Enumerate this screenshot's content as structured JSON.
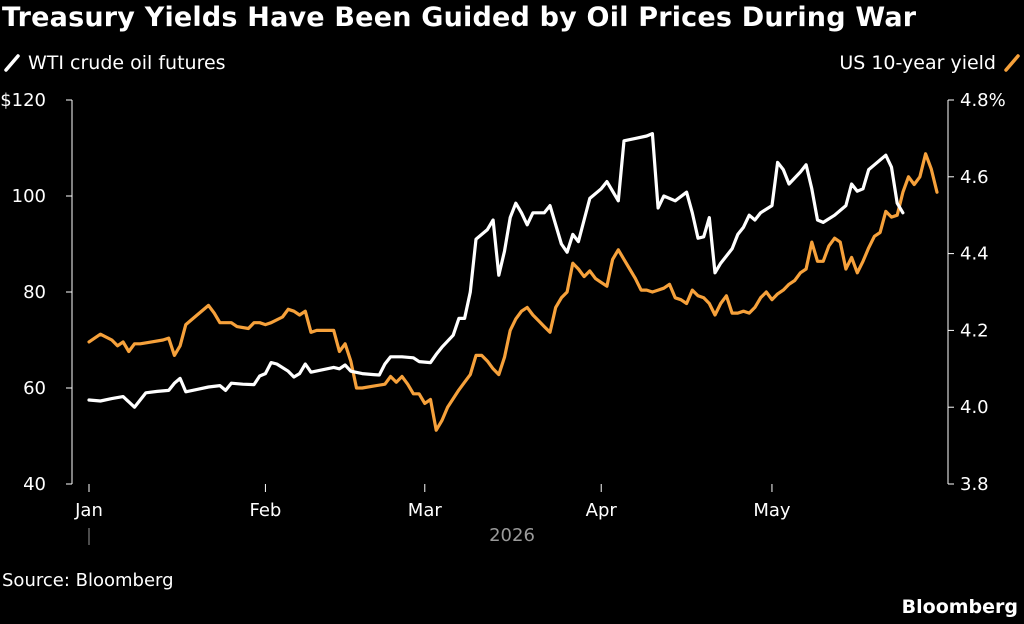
{
  "title": "Treasury Yields Have Been Guided by Oil Prices During War",
  "source": "Source: Bloomberg",
  "brand": "Bloomberg",
  "chart_data": {
    "type": "line",
    "title": "Treasury Yields Have Been Guided by Oil Prices During War",
    "x_tick_labels": [
      "Jan",
      "Feb",
      "Mar",
      "Apr",
      "May"
    ],
    "x_tick_positions": [
      0,
      31,
      59,
      90,
      120
    ],
    "x_year_label": "2026",
    "left_axis": {
      "ticks": [
        40,
        60,
        80,
        100,
        120
      ],
      "tick_labels": [
        "40",
        "60",
        "80",
        "100",
        "$120"
      ],
      "range": [
        40,
        120
      ]
    },
    "right_axis": {
      "ticks": [
        3.8,
        4.0,
        4.2,
        4.4,
        4.6,
        4.8
      ],
      "tick_labels": [
        "3.8",
        "4.0",
        "4.2",
        "4.4",
        "4.6",
        "4.8%"
      ],
      "range": [
        3.8,
        4.8
      ]
    },
    "grid": false,
    "series": [
      {
        "name": "WTI crude oil futures",
        "axis": "left",
        "color": "#ffffff",
        "points": [
          [
            0,
            57.5
          ],
          [
            2,
            57.3
          ],
          [
            4,
            57.8
          ],
          [
            6,
            58.2
          ],
          [
            8,
            56.0
          ],
          [
            10,
            59.0
          ],
          [
            12,
            59.3
          ],
          [
            14,
            59.5
          ],
          [
            15,
            61.0
          ],
          [
            16,
            62.0
          ],
          [
            17,
            59.2
          ],
          [
            19,
            59.7
          ],
          [
            21,
            60.2
          ],
          [
            23,
            60.5
          ],
          [
            24,
            59.5
          ],
          [
            25,
            61.0
          ],
          [
            27,
            60.8
          ],
          [
            29,
            60.7
          ],
          [
            30,
            62.5
          ],
          [
            31,
            63.0
          ],
          [
            32,
            65.3
          ],
          [
            33,
            65.0
          ],
          [
            35,
            63.5
          ],
          [
            36,
            62.3
          ],
          [
            37,
            63.0
          ],
          [
            38,
            65.0
          ],
          [
            39,
            63.3
          ],
          [
            41,
            63.8
          ],
          [
            43,
            64.3
          ],
          [
            44,
            64.0
          ],
          [
            45,
            64.8
          ],
          [
            46,
            63.5
          ],
          [
            48,
            63.0
          ],
          [
            50,
            62.8
          ],
          [
            51,
            62.7
          ],
          [
            52,
            65.0
          ],
          [
            53,
            66.5
          ],
          [
            55,
            66.5
          ],
          [
            57,
            66.3
          ],
          [
            58,
            65.5
          ],
          [
            60,
            65.3
          ],
          [
            61,
            67.0
          ],
          [
            62,
            68.5
          ],
          [
            64,
            71.0
          ],
          [
            65,
            74.5
          ],
          [
            66,
            74.5
          ],
          [
            67,
            80.0
          ],
          [
            68,
            91.0
          ],
          [
            70,
            93.0
          ],
          [
            71,
            95.0
          ],
          [
            72,
            83.5
          ],
          [
            73,
            88.5
          ],
          [
            74,
            95.5
          ],
          [
            75,
            98.5
          ],
          [
            76,
            96.5
          ],
          [
            77,
            94.0
          ],
          [
            78,
            96.5
          ],
          [
            80,
            96.5
          ],
          [
            81,
            98.0
          ],
          [
            82,
            94.0
          ],
          [
            83,
            90.0
          ],
          [
            84,
            88.3
          ],
          [
            85,
            92.0
          ],
          [
            86,
            90.5
          ],
          [
            87,
            95.0
          ],
          [
            88,
            99.5
          ],
          [
            90,
            101.5
          ],
          [
            91,
            103.0
          ],
          [
            92,
            101.0
          ],
          [
            93,
            99.0
          ],
          [
            94,
            111.5
          ],
          [
            96,
            112.0
          ],
          [
            98,
            112.5
          ],
          [
            99,
            113.0
          ],
          [
            100,
            97.5
          ],
          [
            101,
            100.0
          ],
          [
            103,
            99.0
          ],
          [
            105,
            100.8
          ],
          [
            106,
            96.5
          ],
          [
            107,
            91.2
          ],
          [
            108,
            91.5
          ],
          [
            109,
            95.5
          ],
          [
            110,
            84.0
          ],
          [
            111,
            86.0
          ],
          [
            113,
            89.0
          ],
          [
            114,
            92.0
          ],
          [
            115,
            93.5
          ],
          [
            116,
            96.0
          ],
          [
            117,
            95.0
          ],
          [
            118,
            96.5
          ],
          [
            120,
            98.0
          ],
          [
            121,
            107.0
          ],
          [
            122,
            105.5
          ],
          [
            123,
            102.5
          ],
          [
            125,
            105.0
          ],
          [
            126,
            106.5
          ],
          [
            127,
            101.5
          ],
          [
            128,
            95.0
          ],
          [
            129,
            94.5
          ],
          [
            131,
            96.0
          ],
          [
            133,
            98.0
          ],
          [
            134,
            102.5
          ],
          [
            135,
            101.0
          ],
          [
            136,
            101.5
          ],
          [
            137,
            105.5
          ],
          [
            138,
            106.5
          ],
          [
            139,
            107.5
          ],
          [
            140,
            108.5
          ],
          [
            141,
            106.0
          ],
          [
            142,
            98.5
          ],
          [
            143,
            96.5
          ]
        ]
      },
      {
        "name": "US 10-year yield",
        "axis": "right",
        "color": "#f6a13b",
        "points": [
          [
            0,
            4.17
          ],
          [
            2,
            4.19
          ],
          [
            4,
            4.175
          ],
          [
            5,
            4.16
          ],
          [
            6,
            4.17
          ],
          [
            7,
            4.145
          ],
          [
            8,
            4.165
          ],
          [
            9,
            4.165
          ],
          [
            11,
            4.17
          ],
          [
            13,
            4.175
          ],
          [
            14,
            4.18
          ],
          [
            15,
            4.135
          ],
          [
            16,
            4.16
          ],
          [
            17,
            4.215
          ],
          [
            19,
            4.24
          ],
          [
            21,
            4.265
          ],
          [
            22,
            4.245
          ],
          [
            23,
            4.22
          ],
          [
            25,
            4.22
          ],
          [
            26,
            4.21
          ],
          [
            28,
            4.205
          ],
          [
            29,
            4.22
          ],
          [
            30,
            4.22
          ],
          [
            31,
            4.215
          ],
          [
            32,
            4.22
          ],
          [
            34,
            4.235
          ],
          [
            35,
            4.255
          ],
          [
            36,
            4.25
          ],
          [
            37,
            4.24
          ],
          [
            38,
            4.25
          ],
          [
            39,
            4.195
          ],
          [
            40,
            4.2
          ],
          [
            42,
            4.2
          ],
          [
            43,
            4.2
          ],
          [
            44,
            4.145
          ],
          [
            45,
            4.165
          ],
          [
            46,
            4.12
          ],
          [
            47,
            4.05
          ],
          [
            48,
            4.05
          ],
          [
            50,
            4.055
          ],
          [
            52,
            4.06
          ],
          [
            53,
            4.08
          ],
          [
            54,
            4.065
          ],
          [
            55,
            4.08
          ],
          [
            56,
            4.06
          ],
          [
            57,
            4.035
          ],
          [
            58,
            4.035
          ],
          [
            59,
            4.01
          ],
          [
            60,
            4.02
          ],
          [
            61,
            3.94
          ],
          [
            62,
            3.965
          ],
          [
            63,
            4.0
          ],
          [
            65,
            4.045
          ],
          [
            66,
            4.065
          ],
          [
            67,
            4.085
          ],
          [
            68,
            4.135
          ],
          [
            69,
            4.135
          ],
          [
            70,
            4.12
          ],
          [
            71,
            4.1
          ],
          [
            72,
            4.085
          ],
          [
            73,
            4.13
          ],
          [
            74,
            4.2
          ],
          [
            75,
            4.23
          ],
          [
            76,
            4.25
          ],
          [
            77,
            4.26
          ],
          [
            78,
            4.24
          ],
          [
            79,
            4.225
          ],
          [
            80,
            4.21
          ],
          [
            81,
            4.195
          ],
          [
            82,
            4.26
          ],
          [
            83,
            4.285
          ],
          [
            84,
            4.3
          ],
          [
            85,
            4.375
          ],
          [
            86,
            4.36
          ],
          [
            87,
            4.34
          ],
          [
            88,
            4.355
          ],
          [
            89,
            4.335
          ],
          [
            90,
            4.325
          ],
          [
            91,
            4.315
          ],
          [
            92,
            4.385
          ],
          [
            93,
            4.41
          ],
          [
            94,
            4.385
          ],
          [
            95,
            4.36
          ],
          [
            96,
            4.335
          ],
          [
            97,
            4.305
          ],
          [
            98,
            4.305
          ],
          [
            99,
            4.3
          ],
          [
            100,
            4.305
          ],
          [
            101,
            4.31
          ],
          [
            102,
            4.32
          ],
          [
            103,
            4.285
          ],
          [
            104,
            4.28
          ],
          [
            105,
            4.27
          ],
          [
            106,
            4.305
          ],
          [
            107,
            4.29
          ],
          [
            108,
            4.285
          ],
          [
            109,
            4.27
          ],
          [
            110,
            4.24
          ],
          [
            111,
            4.27
          ],
          [
            112,
            4.29
          ],
          [
            113,
            4.245
          ],
          [
            114,
            4.245
          ],
          [
            115,
            4.25
          ],
          [
            116,
            4.245
          ],
          [
            117,
            4.26
          ],
          [
            118,
            4.285
          ],
          [
            119,
            4.3
          ],
          [
            120,
            4.28
          ],
          [
            121,
            4.295
          ],
          [
            122,
            4.305
          ],
          [
            123,
            4.32
          ],
          [
            124,
            4.33
          ],
          [
            125,
            4.35
          ],
          [
            126,
            4.36
          ],
          [
            127,
            4.43
          ],
          [
            128,
            4.38
          ],
          [
            129,
            4.38
          ],
          [
            130,
            4.42
          ],
          [
            131,
            4.44
          ],
          [
            132,
            4.43
          ],
          [
            133,
            4.36
          ],
          [
            134,
            4.39
          ],
          [
            135,
            4.35
          ],
          [
            136,
            4.38
          ],
          [
            137,
            4.415
          ],
          [
            138,
            4.445
          ],
          [
            139,
            4.455
          ],
          [
            140,
            4.51
          ],
          [
            141,
            4.495
          ],
          [
            142,
            4.5
          ],
          [
            143,
            4.56
          ],
          [
            144,
            4.6
          ],
          [
            145,
            4.58
          ],
          [
            146,
            4.6
          ],
          [
            147,
            4.66
          ],
          [
            148,
            4.62
          ],
          [
            149,
            4.56
          ]
        ]
      }
    ]
  }
}
